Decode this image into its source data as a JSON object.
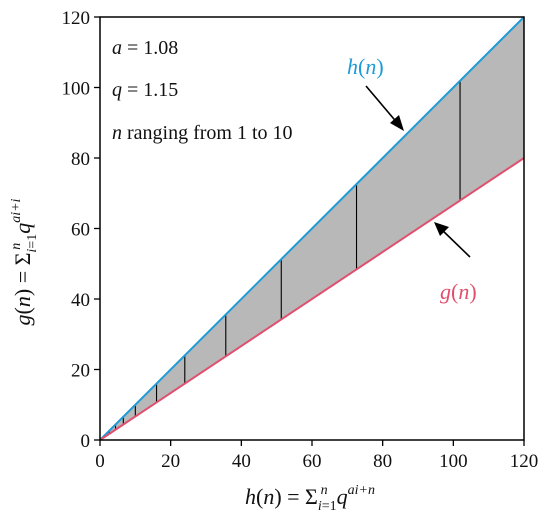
{
  "chart_data": {
    "type": "line",
    "xlim": [
      0,
      120
    ],
    "ylim": [
      0,
      120
    ],
    "x_ticks": [
      0,
      20,
      40,
      60,
      80,
      100,
      120
    ],
    "y_ticks": [
      0,
      20,
      40,
      60,
      80,
      100,
      120
    ],
    "xlabel": {
      "lhs_func": "h",
      "lhs_open": "(",
      "lhs_var": "n",
      "lhs_close": ")",
      "equals": " = Σ",
      "sub_index": "i",
      "sub_eq": "=1",
      "sup_limit": "n",
      "base": "q",
      "exponent": "ai+n"
    },
    "ylabel": {
      "lhs_func": "g",
      "lhs_open": "(",
      "lhs_var": "n",
      "lhs_close": ")",
      "equals": " = Σ",
      "sub_index": "i",
      "sub_eq": "=1",
      "sup_limit": "n",
      "base": "q",
      "exponent": "ai+i"
    },
    "annotations": {
      "a_var": "a",
      "a_value": " = 1.08",
      "q_var": "q",
      "q_value": " = 1.15",
      "n_var": "n",
      "n_text": " ranging from 1 to 10"
    },
    "series": [
      {
        "name": "h(n)",
        "color": "#1f9bd6",
        "x": [
          0,
          120
        ],
        "y": [
          0,
          120
        ]
      },
      {
        "name": "g(n)",
        "color": "#e0506e",
        "x": [
          0,
          120
        ],
        "y": [
          0,
          80
        ]
      }
    ],
    "series_labels": {
      "h": {
        "func": "h",
        "open": "(",
        "var": "n",
        "close": ")"
      },
      "g": {
        "func": "g",
        "open": "(",
        "var": "n",
        "close": ")"
      }
    },
    "fill_between": {
      "color": "#b8b8b8"
    },
    "drop_lines_x": [
      1.15,
      2.6,
      4.4,
      6.6,
      10.0,
      16.0,
      24.0,
      35.6,
      51.3,
      72.6,
      101.9
    ]
  }
}
